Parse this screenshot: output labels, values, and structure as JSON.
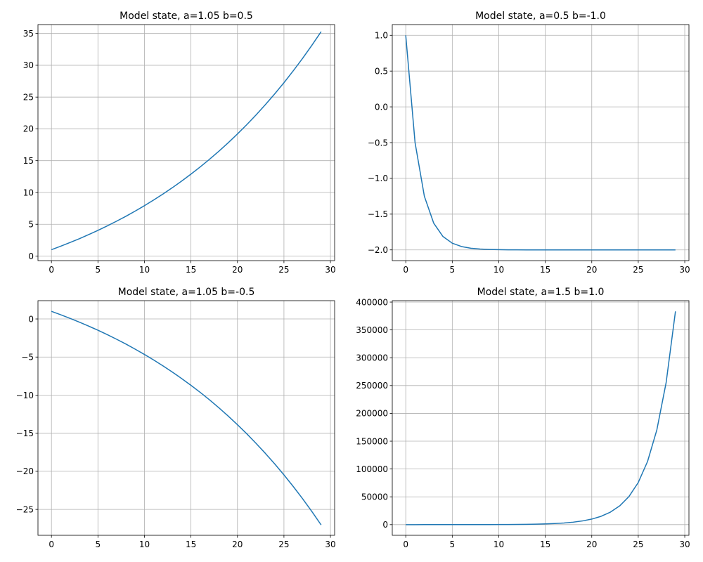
{
  "chart_data": [
    {
      "type": "line",
      "title": "Model state, a=1.05 b=0.5",
      "xlabel": "",
      "ylabel": "",
      "grid": true,
      "xlim": [
        -1.45,
        30.45
      ],
      "ylim": [
        -0.72,
        36.4
      ],
      "xticks": [
        0,
        5,
        10,
        15,
        20,
        25,
        30
      ],
      "xtick_labels": [
        "0",
        "5",
        "10",
        "15",
        "20",
        "25",
        "30"
      ],
      "yticks": [
        0,
        5,
        10,
        15,
        20,
        25,
        30,
        35
      ],
      "ytick_labels": [
        "0",
        "5",
        "10",
        "15",
        "20",
        "25",
        "30",
        "35"
      ],
      "color": "#1f77b4",
      "series": [
        {
          "x": [
            0,
            1,
            2,
            3,
            4,
            5,
            6,
            7,
            8,
            9,
            10,
            11,
            12,
            13,
            14,
            15,
            16,
            17,
            18,
            19,
            20,
            21,
            22,
            23,
            24,
            25,
            26,
            27,
            28,
            29
          ],
          "values": [
            1.0,
            1.55,
            2.13,
            2.73,
            3.37,
            4.04,
            4.74,
            5.48,
            6.25,
            7.07,
            7.92,
            8.82,
            9.76,
            10.75,
            11.79,
            12.88,
            14.02,
            15.22,
            16.48,
            17.81,
            19.2,
            20.66,
            22.19,
            23.8,
            25.49,
            27.26,
            29.13,
            31.08,
            33.14,
            35.29
          ]
        }
      ]
    },
    {
      "type": "line",
      "title": "Model state, a=0.5 b=-1.0",
      "xlabel": "",
      "ylabel": "",
      "grid": true,
      "xlim": [
        -1.45,
        30.45
      ],
      "ylim": [
        -2.15,
        1.15
      ],
      "xticks": [
        0,
        5,
        10,
        15,
        20,
        25,
        30
      ],
      "xtick_labels": [
        "0",
        "5",
        "10",
        "15",
        "20",
        "25",
        "30"
      ],
      "yticks": [
        1.0,
        0.5,
        0.0,
        -0.5,
        -1.0,
        -1.5,
        -2.0
      ],
      "ytick_labels": [
        "1.0",
        "0.5",
        "0.0",
        "−0.5",
        "−1.0",
        "−1.5",
        "−2.0"
      ],
      "color": "#1f77b4",
      "series": [
        {
          "x": [
            0,
            1,
            2,
            3,
            4,
            5,
            6,
            7,
            8,
            9,
            10,
            11,
            12,
            13,
            14,
            15,
            16,
            17,
            18,
            19,
            20,
            21,
            22,
            23,
            24,
            25,
            26,
            27,
            28,
            29
          ],
          "values": [
            1.0,
            -0.5,
            -1.25,
            -1.625,
            -1.8125,
            -1.9063,
            -1.9531,
            -1.9766,
            -1.9883,
            -1.9941,
            -1.9971,
            -1.9985,
            -1.9993,
            -1.9996,
            -1.9998,
            -1.9999,
            -2.0,
            -2.0,
            -2.0,
            -2.0,
            -2.0,
            -2.0,
            -2.0,
            -2.0,
            -2.0,
            -2.0,
            -2.0,
            -2.0,
            -2.0,
            -2.0
          ]
        }
      ]
    },
    {
      "type": "line",
      "title": "Model state, a=1.05 b=-0.5",
      "xlabel": "",
      "ylabel": "",
      "grid": true,
      "xlim": [
        -1.45,
        30.45
      ],
      "ylim": [
        -28.4,
        2.4
      ],
      "xticks": [
        0,
        5,
        10,
        15,
        20,
        25,
        30
      ],
      "xtick_labels": [
        "0",
        "5",
        "10",
        "15",
        "20",
        "25",
        "30"
      ],
      "yticks": [
        0,
        -5,
        -10,
        -15,
        -20,
        -25
      ],
      "ytick_labels": [
        "0",
        "−5",
        "−10",
        "−15",
        "−20",
        "−25"
      ],
      "color": "#1f77b4",
      "series": [
        {
          "x": [
            0,
            1,
            2,
            3,
            4,
            5,
            6,
            7,
            8,
            9,
            10,
            11,
            12,
            13,
            14,
            15,
            16,
            17,
            18,
            19,
            20,
            21,
            22,
            23,
            24,
            25,
            26,
            27,
            28,
            29
          ],
          "values": [
            1.0,
            0.55,
            0.08,
            -0.42,
            -0.94,
            -1.48,
            -2.06,
            -2.66,
            -3.29,
            -3.96,
            -4.66,
            -5.39,
            -6.16,
            -6.97,
            -7.82,
            -8.71,
            -9.64,
            -10.62,
            -11.66,
            -12.74,
            -13.88,
            -15.07,
            -16.33,
            -17.64,
            -19.02,
            -20.47,
            -21.99,
            -23.59,
            -25.27,
            -27.04
          ]
        }
      ]
    },
    {
      "type": "line",
      "title": "Model state, a=1.5 b=1.0",
      "xlabel": "",
      "ylabel": "",
      "grid": true,
      "xlim": [
        -1.45,
        30.45
      ],
      "ylim": [
        -19170,
        402570
      ],
      "xticks": [
        0,
        5,
        10,
        15,
        20,
        25,
        30
      ],
      "xtick_labels": [
        "0",
        "5",
        "10",
        "15",
        "20",
        "25",
        "30"
      ],
      "yticks": [
        0,
        50000,
        100000,
        150000,
        200000,
        250000,
        300000,
        350000,
        400000
      ],
      "ytick_labels": [
        "0",
        "50000",
        "100000",
        "150000",
        "200000",
        "250000",
        "300000",
        "350000",
        "400000"
      ],
      "color": "#1f77b4",
      "series": [
        {
          "x": [
            0,
            1,
            2,
            3,
            4,
            5,
            6,
            7,
            8,
            9,
            10,
            11,
            12,
            13,
            14,
            15,
            16,
            17,
            18,
            19,
            20,
            21,
            22,
            23,
            24,
            25,
            26,
            27,
            28,
            29
          ],
          "values": [
            1,
            2.5,
            4.75,
            8.13,
            13.19,
            20.78,
            32.17,
            49.26,
            74.89,
            113.3,
            171,
            257.5,
            387.2,
            581.8,
            873.7,
            1311,
            1968,
            2953,
            4430,
            6646,
            9969,
            14955,
            22433,
            33650,
            50476,
            75714,
            113572,
            170359,
            255539,
            383309
          ]
        }
      ]
    }
  ]
}
